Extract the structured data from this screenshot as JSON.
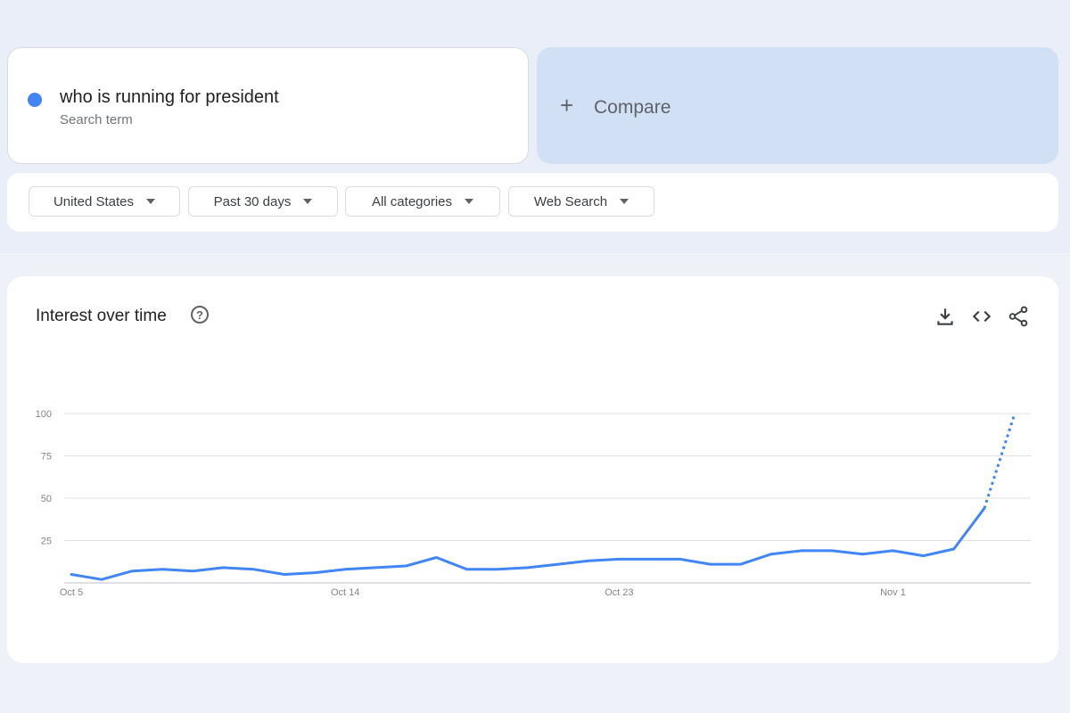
{
  "search_term": {
    "text": "who is running for president",
    "subtitle": "Search term",
    "color": "#4285f4"
  },
  "compare": {
    "label": "Compare",
    "icon": "plus-icon"
  },
  "filters": [
    {
      "label": "United States"
    },
    {
      "label": "Past 30 days"
    },
    {
      "label": "All categories"
    },
    {
      "label": "Web Search"
    }
  ],
  "panel": {
    "title": "Interest over time",
    "icons": [
      "help-icon",
      "download-icon",
      "embed-code-icon",
      "share-icon"
    ]
  },
  "chart_data": {
    "type": "line",
    "title": "Interest over time",
    "x": [
      "Oct 5",
      "Oct 6",
      "Oct 7",
      "Oct 8",
      "Oct 9",
      "Oct 10",
      "Oct 11",
      "Oct 12",
      "Oct 13",
      "Oct 14",
      "Oct 15",
      "Oct 16",
      "Oct 17",
      "Oct 18",
      "Oct 19",
      "Oct 20",
      "Oct 21",
      "Oct 22",
      "Oct 23",
      "Oct 24",
      "Oct 25",
      "Oct 26",
      "Oct 27",
      "Oct 28",
      "Oct 29",
      "Oct 30",
      "Oct 31",
      "Nov 1",
      "Nov 2",
      "Nov 3",
      "Nov 4",
      "Nov 5"
    ],
    "values": [
      5,
      2,
      7,
      8,
      7,
      9,
      8,
      5,
      6,
      8,
      9,
      10,
      15,
      8,
      8,
      9,
      11,
      13,
      14,
      14,
      14,
      11,
      11,
      17,
      19,
      19,
      17,
      19,
      16,
      20,
      44,
      100
    ],
    "partial_from_index": 30,
    "x_tick_labels": [
      "Oct 5",
      "Oct 14",
      "Oct 23",
      "Nov 1"
    ],
    "y_ticks": [
      25,
      50,
      75,
      100
    ],
    "ylim": [
      0,
      100
    ],
    "grid": true,
    "line_color": "#4285f4"
  }
}
